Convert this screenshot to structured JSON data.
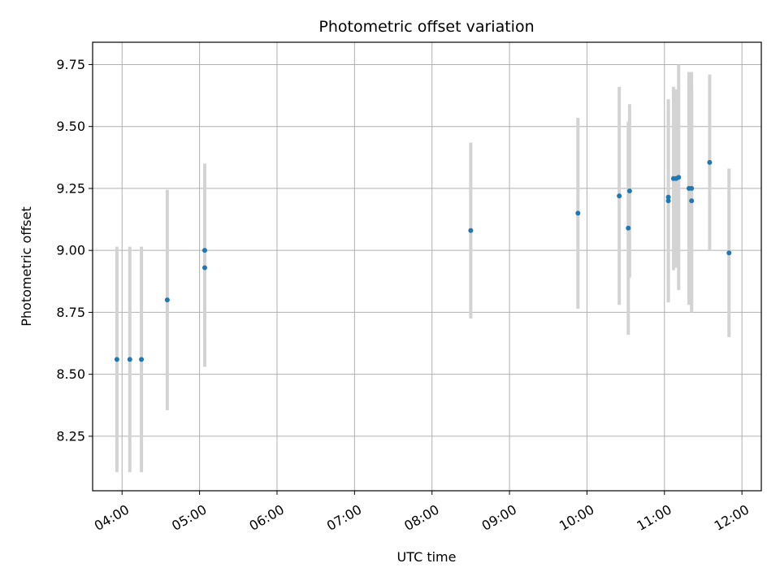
{
  "chart_data": {
    "type": "scatter",
    "title": "Photometric offset variation",
    "xlabel": "UTC time",
    "ylabel": "Photometric offset",
    "x_tick_labels": [
      "04:00",
      "05:00",
      "06:00",
      "07:00",
      "08:00",
      "09:00",
      "10:00",
      "11:00",
      "12:00"
    ],
    "y_tick_labels": [
      "8.25",
      "8.50",
      "8.75",
      "9.00",
      "9.25",
      "9.50",
      "9.75"
    ],
    "x_ticks_hours": [
      4,
      5,
      6,
      7,
      8,
      9,
      10,
      11,
      12
    ],
    "y_ticks": [
      8.25,
      8.5,
      8.75,
      9.0,
      9.25,
      9.5,
      9.75
    ],
    "xlim_hours": [
      3.62,
      12.25
    ],
    "ylim": [
      8.03,
      9.84
    ],
    "grid": true,
    "point_color": "#1f77b4",
    "errorbar_color": "#d3d3d3",
    "points": [
      {
        "t": "03:56",
        "y": 8.56,
        "err": 0.455
      },
      {
        "t": "04:06",
        "y": 8.56,
        "err": 0.455
      },
      {
        "t": "04:15",
        "y": 8.56,
        "err": 0.455
      },
      {
        "t": "04:35",
        "y": 8.8,
        "err": 0.445
      },
      {
        "t": "05:04",
        "y": 8.93,
        "err": 0.4
      },
      {
        "t": "05:04",
        "y": 9.0,
        "err": 0.35
      },
      {
        "t": "08:30",
        "y": 9.08,
        "err": 0.355
      },
      {
        "t": "09:53",
        "y": 9.15,
        "err": 0.385
      },
      {
        "t": "10:25",
        "y": 9.22,
        "err": 0.44
      },
      {
        "t": "10:32",
        "y": 9.09,
        "err": 0.43
      },
      {
        "t": "10:33",
        "y": 9.24,
        "err": 0.35
      },
      {
        "t": "11:03",
        "y": 9.2,
        "err": 0.41
      },
      {
        "t": "11:03",
        "y": 9.215,
        "err": 0.35
      },
      {
        "t": "11:07",
        "y": 9.29,
        "err": 0.37
      },
      {
        "t": "11:09",
        "y": 9.29,
        "err": 0.36
      },
      {
        "t": "11:11",
        "y": 9.295,
        "err": 0.455
      },
      {
        "t": "11:19",
        "y": 9.25,
        "err": 0.47
      },
      {
        "t": "11:21",
        "y": 9.25,
        "err": 0.47
      },
      {
        "t": "11:21",
        "y": 9.2,
        "err": 0.45
      },
      {
        "t": "11:35",
        "y": 9.355,
        "err": 0.355
      },
      {
        "t": "11:50",
        "y": 8.99,
        "err": 0.34
      }
    ]
  }
}
